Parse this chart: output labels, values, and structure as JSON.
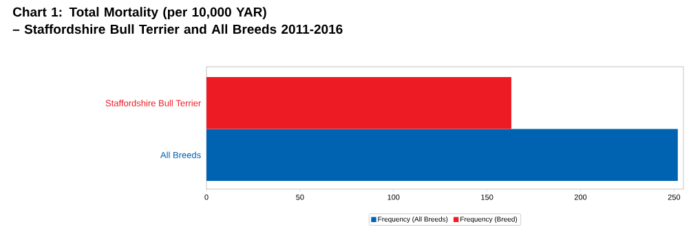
{
  "chart_data": {
    "type": "bar",
    "orientation": "horizontal",
    "title": "Chart 1: Total Mortality (per 10,000 YAR)\n –  Staffordshire Bull Terrier and All Breeds 2011-2016",
    "categories": [
      "Staffordshire Bull Terrier",
      "All Breeds"
    ],
    "series": [
      {
        "name": "Frequency (All Breeds)",
        "color": "#0063b1",
        "values": [
          null,
          252
        ]
      },
      {
        "name": "Frequency (Breed)",
        "color": "#ed1c24",
        "values": [
          163,
          null
        ]
      }
    ],
    "xlim": [
      0,
      255
    ],
    "xticks": [
      0,
      50,
      100,
      150,
      200,
      250
    ],
    "grid": false,
    "legend": "bottom"
  }
}
